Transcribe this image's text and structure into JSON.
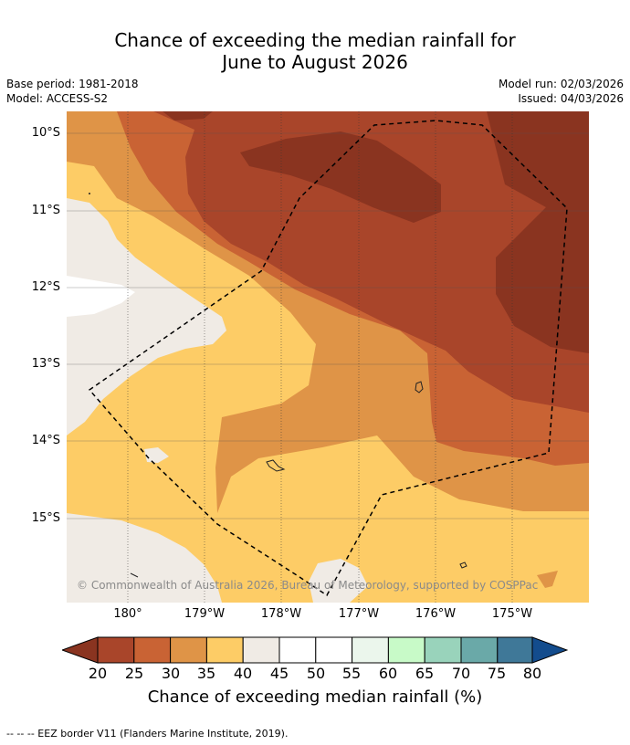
{
  "title": {
    "line1": "Chance of exceeding the median rainfall for",
    "line2": "June to August 2026"
  },
  "meta": {
    "base_period": "Base period: 1981-2018",
    "model": "Model: ACCESS-S2",
    "model_run": "Model run: 02/03/2026",
    "issued": "Issued: 04/03/2026"
  },
  "map": {
    "lat_labels": [
      "10°S",
      "11°S",
      "12°S",
      "13°S",
      "14°S",
      "15°S"
    ],
    "lon_labels": [
      "180°",
      "179°W",
      "178°W",
      "177°W",
      "176°W",
      "175°W"
    ],
    "credit": "© Commonwealth of Australia 2026, Bureau of Meteorology, supported by COSPPac"
  },
  "colorbar": {
    "ticks": [
      "20",
      "25",
      "30",
      "35",
      "40",
      "45",
      "50",
      "55",
      "60",
      "65",
      "70",
      "75",
      "80"
    ],
    "colors": {
      "below20": "#8a3420",
      "c20_25": "#a9452a",
      "c25_30": "#c96334",
      "c30_35": "#df9447",
      "c35_40": "#fdcc66",
      "c40_45": "#f0ebe5",
      "c45_50": "#ffffff",
      "c50_55": "#ffffff",
      "c55_60": "#ebf6ec",
      "c60_65": "#c8fac8",
      "c65_70": "#99d3bb",
      "c70_75": "#6aa9a8",
      "c75_80": "#3f7898",
      "above80": "#134c8d"
    },
    "title": "Chance of exceeding median rainfall (%)"
  },
  "legend": {
    "text": "--  --  -- EEZ border V11 (Flanders Marine Institute, 2019)."
  }
}
